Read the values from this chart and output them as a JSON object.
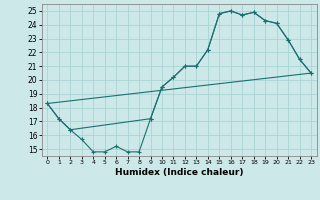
{
  "xlabel": "Humidex (Indice chaleur)",
  "xlim": [
    -0.5,
    23.5
  ],
  "ylim": [
    14.5,
    25.5
  ],
  "xticks": [
    0,
    1,
    2,
    3,
    4,
    5,
    6,
    7,
    8,
    9,
    10,
    11,
    12,
    13,
    14,
    15,
    16,
    17,
    18,
    19,
    20,
    21,
    22,
    23
  ],
  "yticks": [
    15,
    16,
    17,
    18,
    19,
    20,
    21,
    22,
    23,
    24,
    25
  ],
  "background_color": "#cce8e8",
  "grid_color": "#aad4d4",
  "line_color": "#1a7070",
  "line1_x": [
    0,
    1,
    2,
    3,
    4,
    5,
    6,
    7,
    8,
    9,
    10,
    11,
    12,
    13,
    14,
    15,
    16,
    17,
    18,
    19,
    20,
    21,
    22,
    23
  ],
  "line1_y": [
    18.3,
    17.2,
    16.4,
    15.7,
    14.8,
    14.8,
    15.2,
    14.8,
    14.8,
    17.2,
    19.5,
    20.2,
    21.0,
    21.0,
    22.2,
    24.8,
    25.0,
    24.7,
    24.9,
    24.3,
    24.1,
    22.9,
    21.5,
    20.5
  ],
  "line2_x": [
    0,
    1,
    2,
    9,
    10,
    11,
    12,
    13,
    14,
    15,
    16,
    17,
    18,
    19,
    20,
    21,
    22,
    23
  ],
  "line2_y": [
    18.3,
    17.2,
    16.4,
    17.2,
    19.5,
    20.2,
    21.0,
    21.0,
    22.2,
    24.8,
    25.0,
    24.7,
    24.9,
    24.3,
    24.1,
    22.9,
    21.5,
    20.5
  ],
  "line3_x": [
    0,
    23
  ],
  "line3_y": [
    18.3,
    20.5
  ]
}
